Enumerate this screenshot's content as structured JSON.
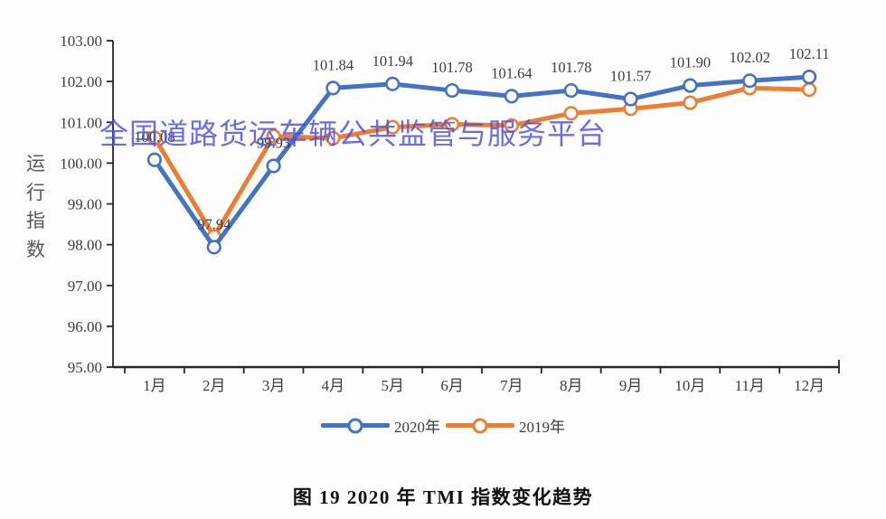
{
  "watermark": "全国道路货运车辆公共监管与服务平台",
  "chart_data": {
    "type": "line",
    "title": "图 19  2020 年 TMI 指数变化趋势",
    "ylabel": "运行指数",
    "xlabel": "",
    "ylim": [
      95,
      103
    ],
    "yticks": [
      "95.00",
      "96.00",
      "97.00",
      "98.00",
      "99.00",
      "100.00",
      "101.00",
      "102.00",
      "103.00"
    ],
    "grid": false,
    "legend_position": "bottom",
    "categories": [
      "1月",
      "2月",
      "3月",
      "4月",
      "5月",
      "6月",
      "7月",
      "8月",
      "9月",
      "10月",
      "11月",
      "12月"
    ],
    "series": [
      {
        "name": "2020年",
        "color": "#4472C4",
        "values": [
          100.08,
          97.94,
          99.93,
          101.84,
          101.94,
          101.78,
          101.64,
          101.78,
          101.57,
          101.9,
          102.02,
          102.11
        ],
        "labels": [
          "100.08",
          "97.94",
          "99.93",
          "101.84",
          "101.94",
          "101.78",
          "101.64",
          "101.78",
          "101.57",
          "101.90",
          "102.02",
          "102.11"
        ]
      },
      {
        "name": "2019年",
        "color": "#ED7D31",
        "values": [
          100.62,
          98.2,
          100.66,
          100.61,
          100.88,
          100.95,
          100.92,
          101.22,
          101.33,
          101.48,
          101.84,
          101.8
        ],
        "labels": null
      }
    ]
  }
}
